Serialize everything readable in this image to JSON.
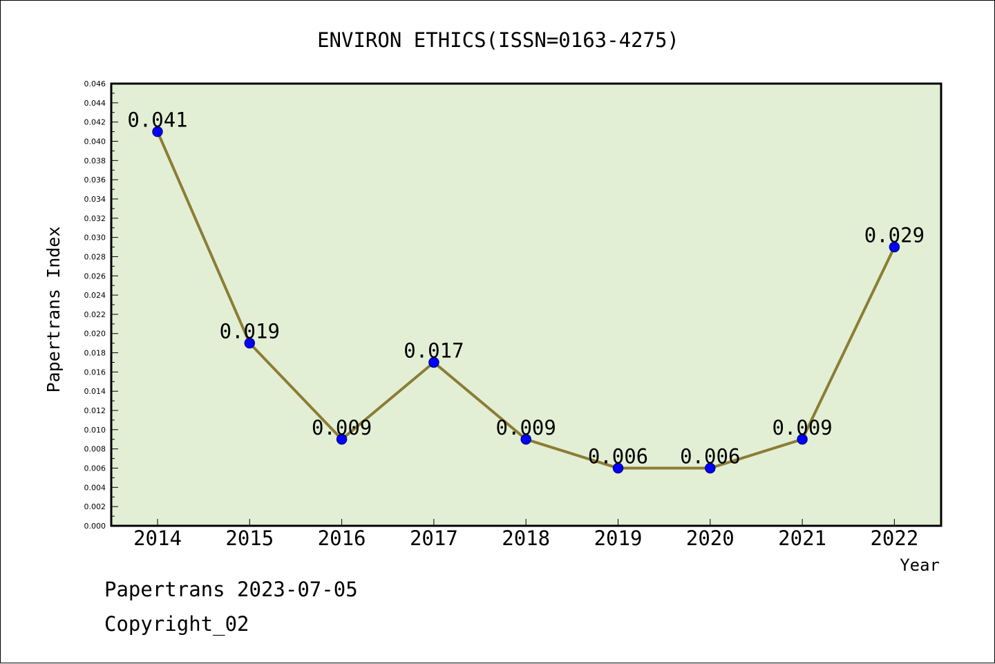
{
  "footer": {
    "line1": "Papertrans 2023-07-05",
    "line2": "Copyright_02"
  },
  "chart_data": {
    "type": "line",
    "title": "ENVIRON ETHICS(ISSN=0163-4275)",
    "xlabel": "Year",
    "ylabel": "Papertrans Index",
    "categories": [
      "2014",
      "2015",
      "2016",
      "2017",
      "2018",
      "2019",
      "2020",
      "2021",
      "2022"
    ],
    "values": [
      0.041,
      0.019,
      0.009,
      0.017,
      0.009,
      0.006,
      0.006,
      0.009,
      0.029
    ],
    "data_labels": [
      "0.041",
      "0.019",
      "0.009",
      "0.017",
      "0.009",
      "0.006",
      "0.006",
      "0.009",
      "0.029"
    ],
    "ylim": [
      0,
      0.046
    ],
    "yticks": [
      "0.000",
      "0.002",
      "0.004",
      "0.006",
      "0.008",
      "0.010",
      "0.012",
      "0.014",
      "0.016",
      "0.018",
      "0.020",
      "0.022",
      "0.024",
      "0.026",
      "0.028",
      "0.030",
      "0.032",
      "0.034",
      "0.036",
      "0.038",
      "0.040",
      "0.042",
      "0.044",
      "0.046"
    ],
    "grid": false,
    "colors": {
      "plot_background": "#e2efd5",
      "line": "#8b7d35",
      "marker": "#0000ff",
      "marker_edge": "#00008b",
      "axis": "#000000"
    }
  }
}
